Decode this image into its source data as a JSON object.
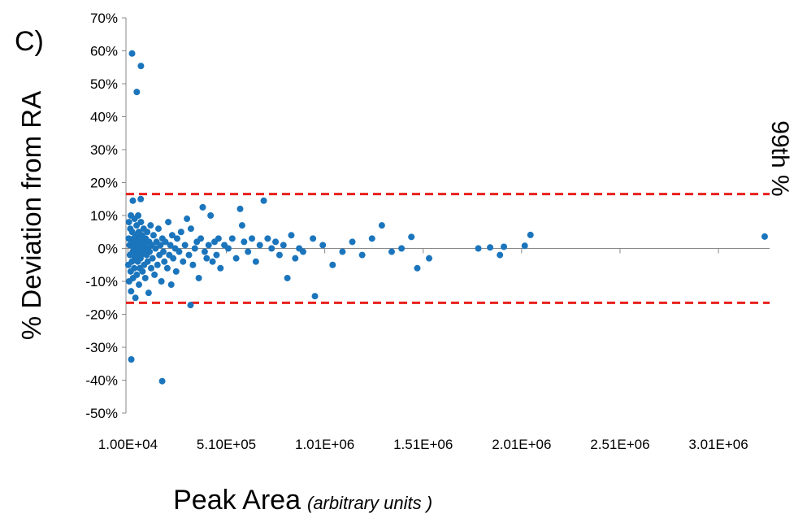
{
  "chart_data": {
    "type": "scatter",
    "panel_label": "C)",
    "x_label": "Peak Area",
    "x_label_note": "(arbitrary units )",
    "y_label": "% Deviation from RA",
    "reference_label": "99th %",
    "reference_lines": [
      16.5,
      -16.5
    ],
    "reference_color": "#e8201c",
    "xlim": [
      0,
      3270000
    ],
    "ylim": [
      -50,
      70
    ],
    "xticks": [
      {
        "value": 10000,
        "label": "1.00E+04"
      },
      {
        "value": 510000,
        "label": "5.10E+05"
      },
      {
        "value": 1010000,
        "label": "1.01E+06"
      },
      {
        "value": 1510000,
        "label": "1.51E+06"
      },
      {
        "value": 2010000,
        "label": "2.01E+06"
      },
      {
        "value": 2510000,
        "label": "2.51E+06"
      },
      {
        "value": 3010000,
        "label": "3.01E+06"
      }
    ],
    "yticks": [
      {
        "value": 70,
        "label": "70%"
      },
      {
        "value": 60,
        "label": "60%"
      },
      {
        "value": 50,
        "label": "50%"
      },
      {
        "value": 40,
        "label": "40%"
      },
      {
        "value": 30,
        "label": "30%"
      },
      {
        "value": 20,
        "label": "20%"
      },
      {
        "value": 10,
        "label": "10%"
      },
      {
        "value": 0,
        "label": "0%"
      },
      {
        "value": -10,
        "label": "-10%"
      },
      {
        "value": -20,
        "label": "-20%"
      },
      {
        "value": -30,
        "label": "-30%"
      },
      {
        "value": -40,
        "label": "-40%"
      },
      {
        "value": -50,
        "label": "-50%"
      }
    ],
    "color": "#1b75bc",
    "x": [
      12000,
      14000,
      15000,
      16000,
      18000,
      20000,
      22000,
      24000,
      25000,
      26000,
      27000,
      28000,
      30000,
      31000,
      32000,
      34000,
      35000,
      36000,
      38000,
      40000,
      42000,
      44000,
      45000,
      46000,
      48000,
      50000,
      52000,
      54000,
      55000,
      55000,
      56000,
      58000,
      60000,
      62000,
      64000,
      65000,
      66000,
      68000,
      70000,
      72000,
      74000,
      75000,
      76000,
      76000,
      78000,
      80000,
      82000,
      84000,
      85000,
      88000,
      90000,
      92000,
      95000,
      98000,
      100000,
      105000,
      108000,
      110000,
      112000,
      115000,
      118000,
      120000,
      125000,
      128000,
      130000,
      135000,
      140000,
      145000,
      150000,
      155000,
      160000,
      165000,
      170000,
      175000,
      180000,
      184000,
      185000,
      190000,
      195000,
      200000,
      210000,
      215000,
      220000,
      225000,
      230000,
      235000,
      240000,
      250000,
      255000,
      260000,
      270000,
      280000,
      290000,
      300000,
      310000,
      320000,
      328000,
      330000,
      340000,
      350000,
      360000,
      370000,
      380000,
      390000,
      400000,
      410000,
      420000,
      430000,
      440000,
      450000,
      460000,
      470000,
      480000,
      500000,
      520000,
      540000,
      560000,
      580000,
      590000,
      600000,
      620000,
      640000,
      660000,
      680000,
      700000,
      720000,
      740000,
      760000,
      780000,
      800000,
      820000,
      840000,
      860000,
      880000,
      900000,
      950000,
      960000,
      1000000,
      1050000,
      1100000,
      1150000,
      1200000,
      1250000,
      1300000,
      1350000,
      1400000,
      1450000,
      1480000,
      1540000,
      1790000,
      1850000,
      1900000,
      1920000,
      2026000,
      2055000,
      3245000
    ],
    "values": [
      -5,
      3,
      8,
      -10,
      1,
      -2,
      6,
      -7,
      10,
      -13,
      -33.7,
      2,
      -4,
      59.2,
      5,
      -1,
      14.5,
      -9,
      3,
      0,
      -6,
      9,
      -3,
      1,
      -15,
      4,
      -2,
      7,
      -8,
      47.5,
      0,
      2,
      -4,
      10,
      -1,
      5,
      -11,
      3,
      -6,
      1,
      -3,
      15,
      8,
      55.4,
      -2,
      0,
      4,
      -7,
      2,
      -1,
      6,
      -5,
      1,
      -9,
      3,
      -2,
      5,
      -4,
      0,
      -13.5,
      2,
      -1,
      7,
      -6,
      1,
      -3,
      4,
      -8,
      0,
      2,
      -5,
      6,
      -2,
      1,
      -10,
      -40.3,
      3,
      -1,
      -4,
      2,
      -6,
      8,
      -2,
      1,
      -11,
      4,
      -3,
      0,
      -7,
      3,
      -1,
      5,
      -4,
      1,
      9,
      -2,
      -17.2,
      6,
      -5,
      0,
      2,
      -9,
      3,
      12.5,
      -1,
      -3,
      1,
      10,
      -4,
      2,
      -2,
      3,
      -6,
      1,
      0,
      3,
      -3,
      12,
      7,
      2,
      -1,
      3,
      -4,
      1,
      14.5,
      3,
      0,
      2,
      -2,
      1,
      -9,
      4,
      -3,
      0,
      -1,
      3,
      -14.5,
      1,
      -5,
      -1,
      2,
      -2,
      3,
      7,
      -1,
      0,
      3.5,
      -6,
      -3,
      0,
      0.3,
      -2,
      0.5,
      0.8,
      4.1,
      3.6
    ]
  }
}
